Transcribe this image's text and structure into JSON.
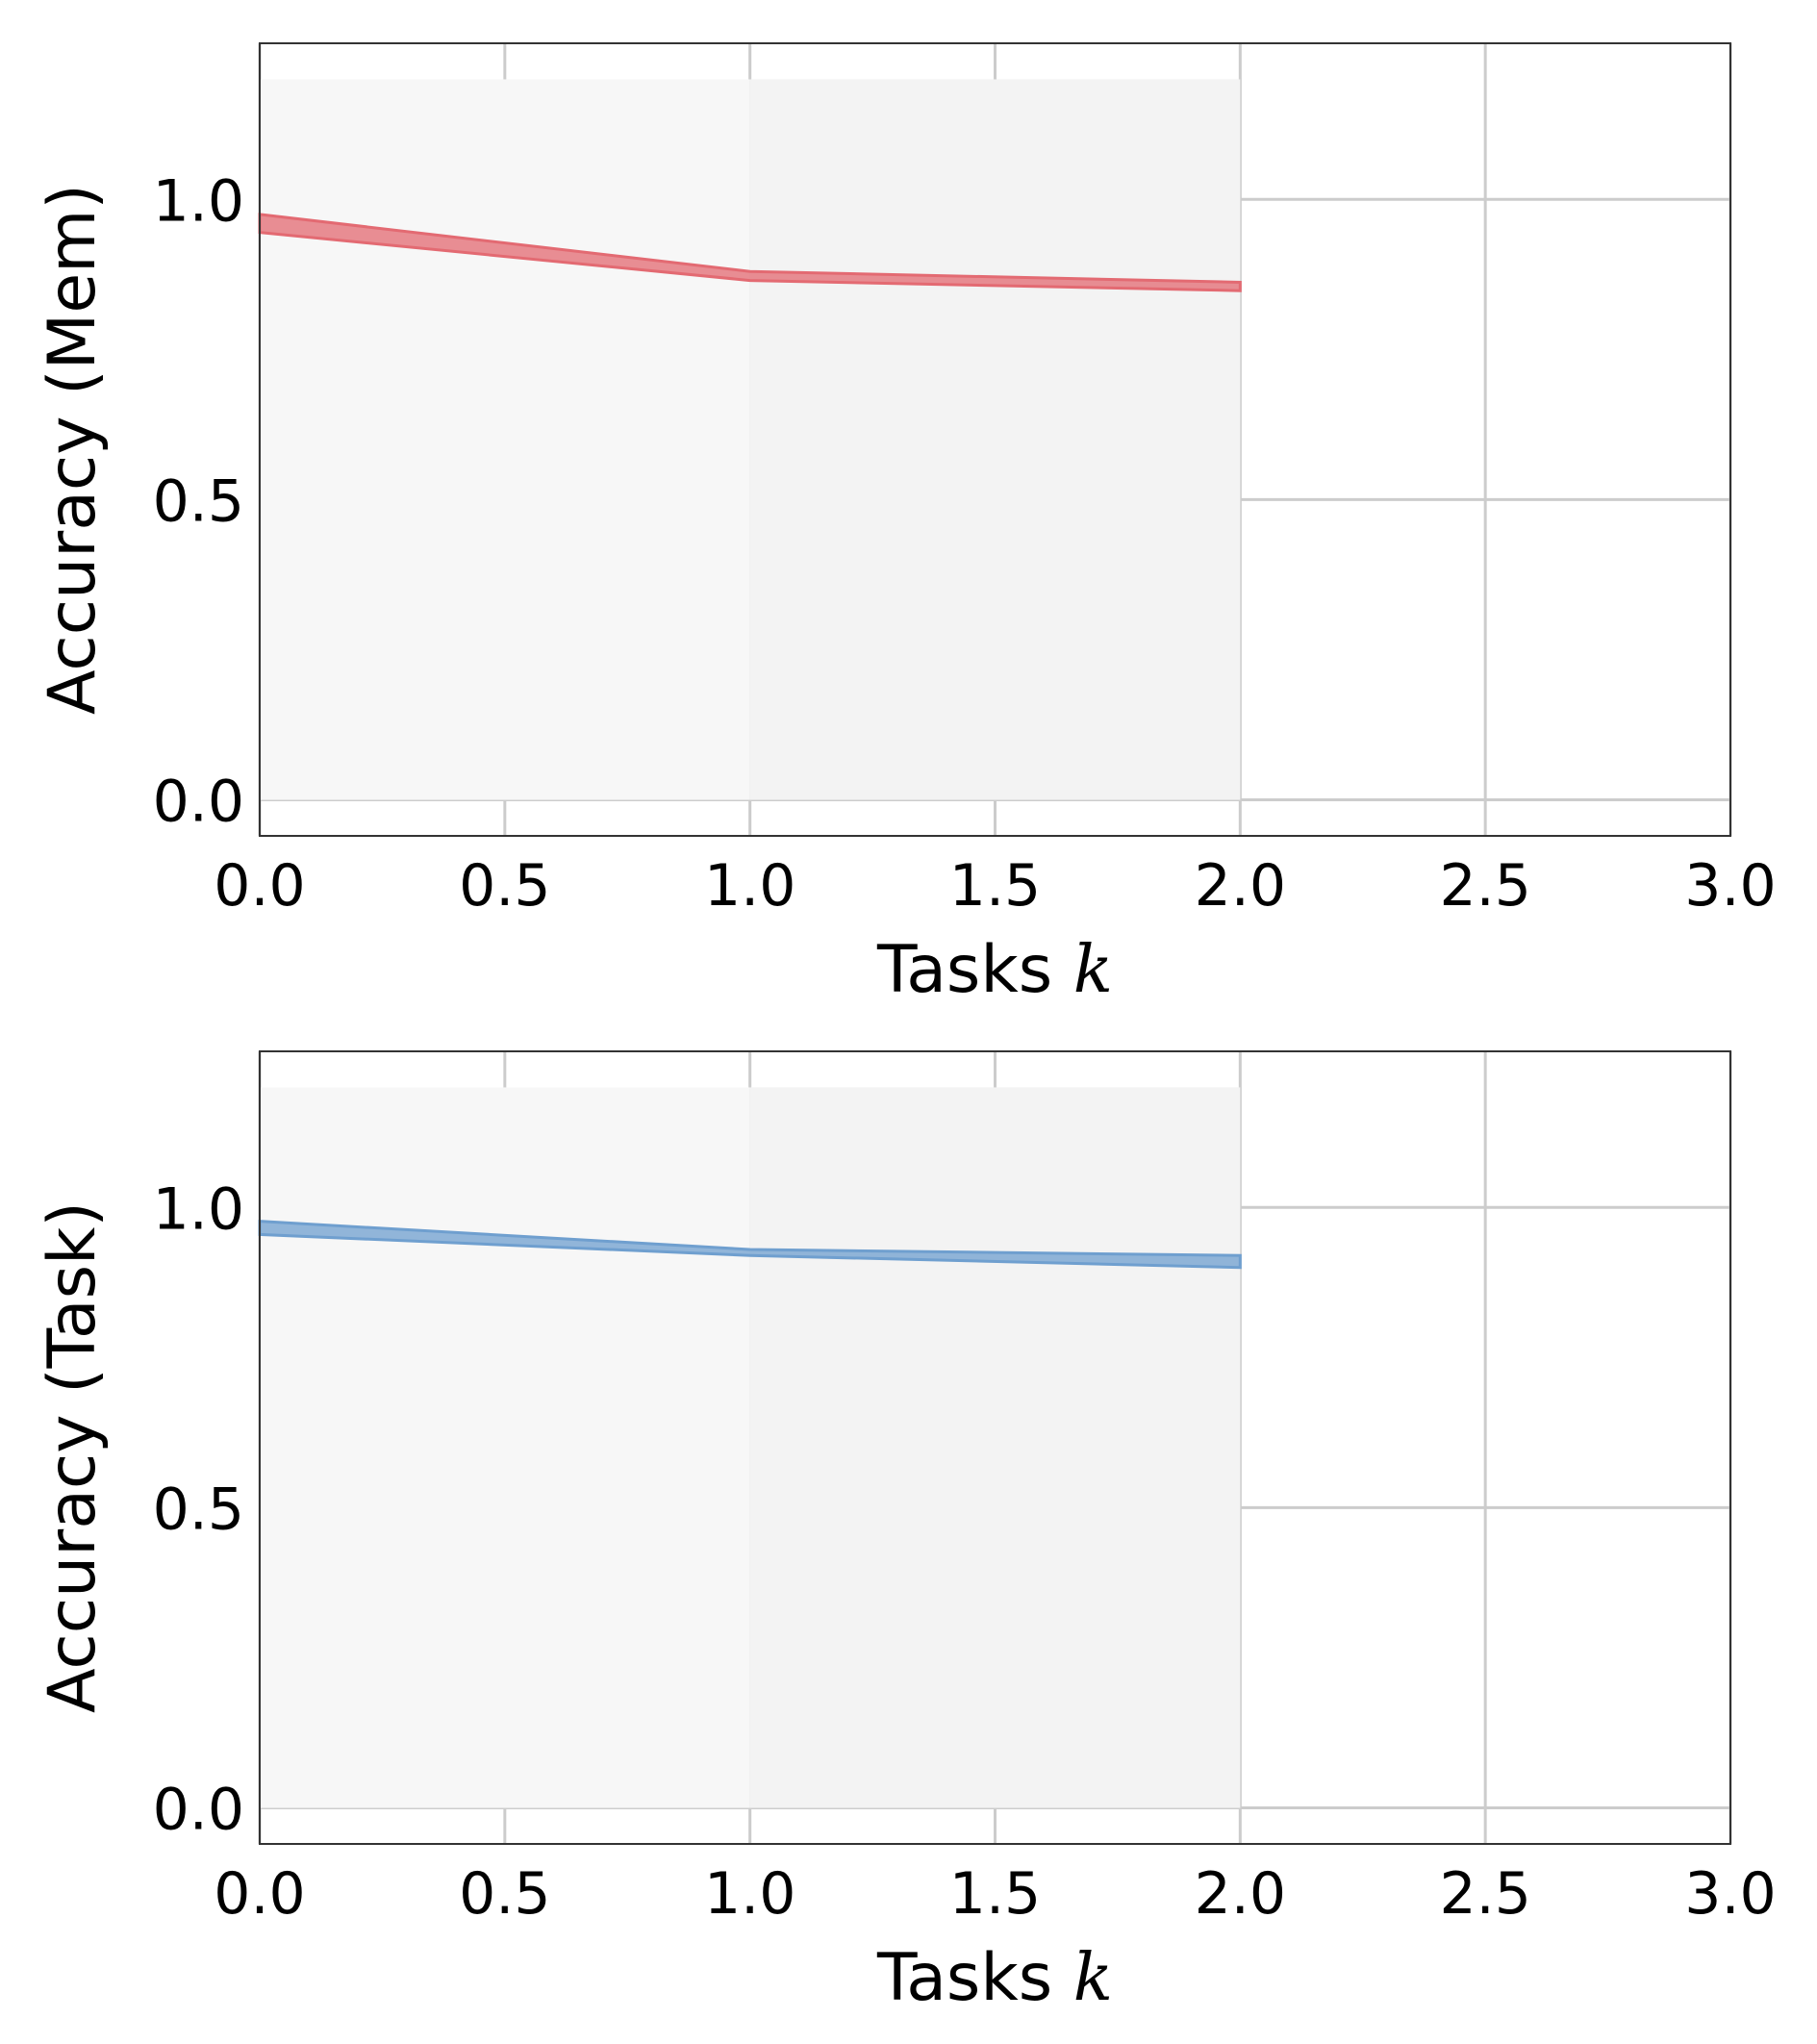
{
  "chart_data": [
    {
      "type": "line",
      "title": "",
      "xlabel": "Tasks",
      "xlabel_var": "k",
      "ylabel": "Accuracy (Mem)",
      "xlim": [
        0,
        3
      ],
      "ylim": [
        -0.06,
        1.26
      ],
      "xticks": [
        0.0,
        0.5,
        1.0,
        1.5,
        2.0,
        2.5,
        3.0
      ],
      "xtick_labels": [
        "0.0",
        "0.5",
        "1.0",
        "1.5",
        "2.0",
        "2.5",
        "3.0"
      ],
      "yticks": [
        0.0,
        0.5,
        1.0
      ],
      "ytick_labels": [
        "0.0",
        "0.5",
        "1.0"
      ],
      "grid": true,
      "shaded_regions": [
        {
          "x0": 0.0,
          "x1": 1.0,
          "y0": 0.0,
          "y1": 1.2,
          "color": "#f7f7f7"
        },
        {
          "x0": 1.0,
          "x1": 2.0,
          "y0": 0.0,
          "y1": 1.2,
          "color": "#f3f3f3"
        }
      ],
      "series": [
        {
          "color": "#e36a72",
          "x": [
            0,
            1,
            2
          ],
          "lower": [
            0.945,
            0.865,
            0.848
          ],
          "upper": [
            0.975,
            0.88,
            0.862
          ]
        }
      ]
    },
    {
      "type": "line",
      "title": "",
      "xlabel": "Tasks",
      "xlabel_var": "k",
      "ylabel": "Accuracy (Task)",
      "xlim": [
        0,
        3
      ],
      "ylim": [
        -0.06,
        1.26
      ],
      "xticks": [
        0.0,
        0.5,
        1.0,
        1.5,
        2.0,
        2.5,
        3.0
      ],
      "xtick_labels": [
        "0.0",
        "0.5",
        "1.0",
        "1.5",
        "2.0",
        "2.5",
        "3.0"
      ],
      "yticks": [
        0.0,
        0.5,
        1.0
      ],
      "ytick_labels": [
        "0.0",
        "0.5",
        "1.0"
      ],
      "grid": true,
      "shaded_regions": [
        {
          "x0": 0.0,
          "x1": 1.0,
          "y0": 0.0,
          "y1": 1.2,
          "color": "#f7f7f7"
        },
        {
          "x0": 1.0,
          "x1": 2.0,
          "y0": 0.0,
          "y1": 1.2,
          "color": "#f3f3f3"
        }
      ],
      "series": [
        {
          "color": "#6f9fcf",
          "x": [
            0,
            1,
            2
          ],
          "lower": [
            0.955,
            0.92,
            0.9
          ],
          "upper": [
            0.977,
            0.93,
            0.92
          ]
        }
      ]
    }
  ]
}
